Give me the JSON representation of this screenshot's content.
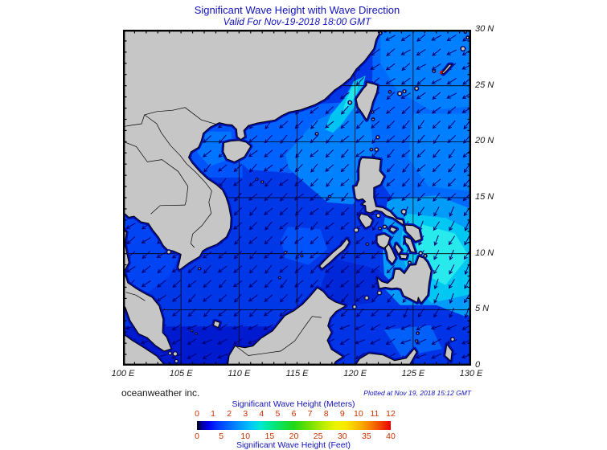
{
  "header": {
    "title": "Significant Wave Height with Wave Direction",
    "subtitle": "Valid For Nov-19-2018 18:00 GMT"
  },
  "axes": {
    "lon_labels": [
      "100 E",
      "105 E",
      "110 E",
      "115 E",
      "120 E",
      "125 E",
      "130 E"
    ],
    "lat_labels": [
      "30 N",
      "25 N",
      "20 N",
      "15 N",
      "10 N",
      "5 N",
      "0"
    ]
  },
  "legend": {
    "meters_title": "Significant Wave Height (Meters)",
    "feet_title": "Significant Wave Height (Feet)",
    "meters_ticks": [
      "0",
      "1",
      "2",
      "3",
      "4",
      "5",
      "6",
      "7",
      "8",
      "9",
      "10",
      "11",
      "12"
    ],
    "feet_ticks": [
      "0",
      "5",
      "10",
      "15",
      "20",
      "25",
      "30",
      "35",
      "40"
    ],
    "gradient": [
      "#000000 0%",
      "#00008b 2%",
      "#0000f0 6%",
      "#0030ff 10%",
      "#0064ff 16%",
      "#0096ff 22%",
      "#00c8f8 28%",
      "#00e8d0 33%",
      "#00e890 38%",
      "#10e050 44%",
      "#20d818 50%",
      "#70e000 58%",
      "#b8ec00 65%",
      "#e8f400 71%",
      "#f8ec00 76%",
      "#f8d400 80%",
      "#f8aa00 85%",
      "#f87800 90%",
      "#f04000 95%",
      "#e80000 100%"
    ]
  },
  "footer": {
    "provider": "oceanweather inc.",
    "plotted": "Plotted at Nov 19, 2018 15:12 GMT"
  },
  "colors": {
    "title_text": "#1212bd",
    "scale_numbers": "#cc3300",
    "land": "#c6c6c6",
    "sea_base": "#0038e8",
    "coast_shallow": "#000fb0",
    "arrow": "#000070"
  }
}
